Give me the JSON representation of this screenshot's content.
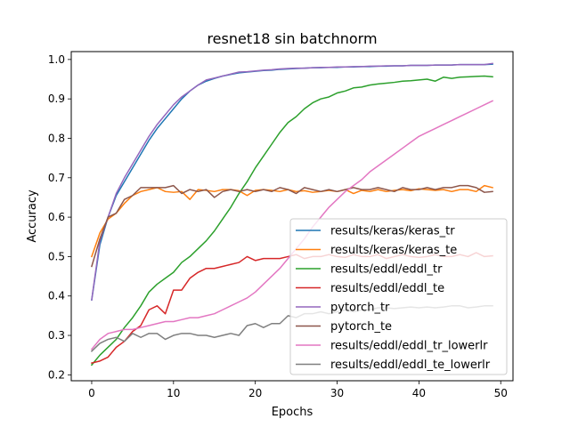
{
  "chart_data": {
    "type": "line",
    "title": "resnet18 sin batchnorm",
    "xlabel": "Epochs",
    "ylabel": "Accuracy",
    "xlim": [
      -2.5,
      51.5
    ],
    "ylim": [
      0.185,
      1.02
    ],
    "xticks": [
      0,
      10,
      20,
      30,
      40,
      50
    ],
    "yticks": [
      0.2,
      0.3,
      0.4,
      0.5,
      0.6,
      0.7,
      0.8,
      0.9,
      1.0
    ],
    "grid": false,
    "legend_position": "lower-right",
    "x": [
      0,
      1,
      2,
      3,
      4,
      5,
      6,
      7,
      8,
      9,
      10,
      11,
      12,
      13,
      14,
      15,
      16,
      17,
      18,
      19,
      20,
      21,
      22,
      23,
      24,
      25,
      26,
      27,
      28,
      29,
      30,
      31,
      32,
      33,
      34,
      35,
      36,
      37,
      38,
      39,
      40,
      41,
      42,
      43,
      44,
      45,
      46,
      47,
      48,
      49
    ],
    "series": [
      {
        "name": "results/keras/keras_tr",
        "color": "#1f77b4",
        "values": [
          0.39,
          0.53,
          0.6,
          0.655,
          0.69,
          0.725,
          0.76,
          0.795,
          0.825,
          0.85,
          0.875,
          0.9,
          0.92,
          0.935,
          0.945,
          0.952,
          0.958,
          0.962,
          0.966,
          0.968,
          0.97,
          0.972,
          0.973,
          0.975,
          0.976,
          0.977,
          0.978,
          0.979,
          0.979,
          0.98,
          0.98,
          0.981,
          0.981,
          0.982,
          0.982,
          0.983,
          0.983,
          0.984,
          0.984,
          0.985,
          0.985,
          0.985,
          0.986,
          0.986,
          0.986,
          0.987,
          0.987,
          0.987,
          0.987,
          0.988
        ]
      },
      {
        "name": "results/keras/keras_te",
        "color": "#ff7f0e",
        "values": [
          0.5,
          0.56,
          0.595,
          0.61,
          0.635,
          0.655,
          0.665,
          0.67,
          0.675,
          0.665,
          0.663,
          0.665,
          0.645,
          0.67,
          0.668,
          0.665,
          0.67,
          0.67,
          0.667,
          0.655,
          0.668,
          0.67,
          0.668,
          0.665,
          0.67,
          0.665,
          0.667,
          0.663,
          0.665,
          0.668,
          0.665,
          0.67,
          0.66,
          0.668,
          0.665,
          0.67,
          0.665,
          0.668,
          0.67,
          0.667,
          0.672,
          0.67,
          0.668,
          0.67,
          0.665,
          0.67,
          0.67,
          0.665,
          0.68,
          0.675
        ]
      },
      {
        "name": "results/eddl/eddl_tr",
        "color": "#2ca02c",
        "values": [
          0.225,
          0.25,
          0.27,
          0.29,
          0.32,
          0.345,
          0.375,
          0.41,
          0.43,
          0.445,
          0.46,
          0.485,
          0.5,
          0.52,
          0.54,
          0.565,
          0.595,
          0.625,
          0.66,
          0.69,
          0.725,
          0.755,
          0.785,
          0.815,
          0.84,
          0.855,
          0.875,
          0.89,
          0.9,
          0.905,
          0.915,
          0.92,
          0.928,
          0.93,
          0.935,
          0.938,
          0.94,
          0.942,
          0.945,
          0.946,
          0.948,
          0.95,
          0.945,
          0.955,
          0.952,
          0.955,
          0.956,
          0.957,
          0.958,
          0.956
        ]
      },
      {
        "name": "results/eddl/eddl_te",
        "color": "#d62728",
        "values": [
          0.23,
          0.235,
          0.245,
          0.27,
          0.285,
          0.31,
          0.325,
          0.365,
          0.375,
          0.355,
          0.415,
          0.415,
          0.445,
          0.46,
          0.47,
          0.47,
          0.475,
          0.48,
          0.485,
          0.5,
          0.49,
          0.495,
          0.495,
          0.495,
          0.5,
          0.505,
          0.495,
          0.5,
          0.5,
          0.505,
          0.5,
          0.498,
          0.505,
          0.5,
          0.5,
          0.505,
          0.495,
          0.5,
          0.505,
          0.5,
          0.498,
          0.5,
          0.505,
          0.5,
          0.5,
          0.505,
          0.5,
          0.51,
          0.5,
          0.502
        ]
      },
      {
        "name": "pytorch_tr",
        "color": "#9467bd",
        "values": [
          0.39,
          0.54,
          0.6,
          0.66,
          0.7,
          0.735,
          0.77,
          0.805,
          0.835,
          0.86,
          0.885,
          0.905,
          0.92,
          0.935,
          0.948,
          0.953,
          0.958,
          0.963,
          0.968,
          0.969,
          0.971,
          0.973,
          0.974,
          0.976,
          0.977,
          0.978,
          0.978,
          0.979,
          0.98,
          0.98,
          0.981,
          0.981,
          0.982,
          0.982,
          0.983,
          0.983,
          0.984,
          0.984,
          0.984,
          0.985,
          0.985,
          0.985,
          0.986,
          0.986,
          0.986,
          0.987,
          0.987,
          0.987,
          0.987,
          0.99
        ]
      },
      {
        "name": "pytorch_te",
        "color": "#8c564b",
        "values": [
          0.475,
          0.545,
          0.6,
          0.61,
          0.645,
          0.655,
          0.675,
          0.675,
          0.675,
          0.675,
          0.68,
          0.66,
          0.67,
          0.665,
          0.67,
          0.65,
          0.665,
          0.67,
          0.665,
          0.67,
          0.665,
          0.67,
          0.665,
          0.675,
          0.67,
          0.66,
          0.675,
          0.67,
          0.665,
          0.67,
          0.665,
          0.67,
          0.675,
          0.67,
          0.67,
          0.675,
          0.67,
          0.665,
          0.675,
          0.67,
          0.67,
          0.675,
          0.67,
          0.675,
          0.675,
          0.68,
          0.68,
          0.675,
          0.663,
          0.665
        ]
      },
      {
        "name": "results/eddl/eddl_tr_lowerlr",
        "color": "#e377c2",
        "values": [
          0.265,
          0.29,
          0.305,
          0.31,
          0.315,
          0.315,
          0.32,
          0.325,
          0.33,
          0.335,
          0.335,
          0.34,
          0.345,
          0.345,
          0.35,
          0.355,
          0.365,
          0.375,
          0.385,
          0.395,
          0.41,
          0.43,
          0.45,
          0.47,
          0.495,
          0.52,
          0.545,
          0.575,
          0.6,
          0.625,
          0.645,
          0.665,
          0.68,
          0.695,
          0.715,
          0.73,
          0.745,
          0.76,
          0.775,
          0.79,
          0.805,
          0.815,
          0.825,
          0.835,
          0.845,
          0.855,
          0.865,
          0.875,
          0.885,
          0.895
        ]
      },
      {
        "name": "results/eddl/eddl_te_lowerlr",
        "color": "#7f7f7f",
        "values": [
          0.26,
          0.28,
          0.29,
          0.295,
          0.285,
          0.305,
          0.295,
          0.305,
          0.305,
          0.29,
          0.3,
          0.305,
          0.305,
          0.3,
          0.3,
          0.295,
          0.3,
          0.305,
          0.3,
          0.325,
          0.33,
          0.32,
          0.33,
          0.33,
          0.35,
          0.345,
          0.355,
          0.355,
          0.36,
          0.355,
          0.36,
          0.365,
          0.36,
          0.365,
          0.365,
          0.37,
          0.37,
          0.368,
          0.37,
          0.372,
          0.37,
          0.372,
          0.37,
          0.372,
          0.375,
          0.375,
          0.37,
          0.372,
          0.375,
          0.375
        ]
      }
    ]
  }
}
